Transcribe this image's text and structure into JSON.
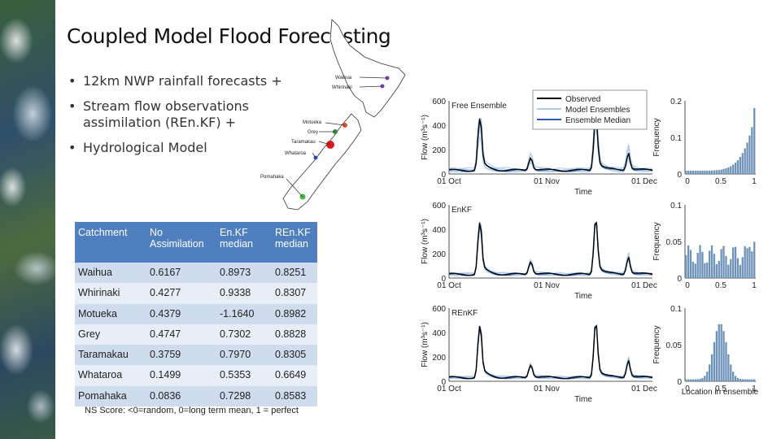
{
  "slide": {
    "title": "Coupled Model Flood Forecasting",
    "bullets": [
      "12km NWP rainfall forecasts +",
      "Stream flow observations assimilation (REn.KF) +",
      "Hydrological Model"
    ],
    "footnote": "NS Score: <0=random, 0=long term mean, 1 = perfect"
  },
  "map": {
    "labels": [
      "Waihua",
      "Whirinaki",
      "Motueka",
      "Grey",
      "Taramakau",
      "Whataroa",
      "Pomahaka"
    ]
  },
  "table": {
    "headers": [
      "Catchment",
      "No Assimilation",
      "En.KF median",
      "REn.KF median"
    ],
    "rows": [
      [
        "Waihua",
        "0.6167",
        "0.8973",
        "0.8251"
      ],
      [
        "Whirinaki",
        "0.4277",
        "0.9338",
        "0.8307"
      ],
      [
        "Motueka",
        "0.4379",
        "-1.1640",
        "0.8982"
      ],
      [
        "Grey",
        "0.4747",
        "0.7302",
        "0.8828"
      ],
      [
        "Taramakau",
        "0.3759",
        "0.7970",
        "0.8305"
      ],
      [
        "Whataroa",
        "0.1499",
        "0.5353",
        "0.6649"
      ],
      [
        "Pomahaka",
        "0.0836",
        "0.7298",
        "0.8583"
      ]
    ]
  },
  "plots": {
    "legend": [
      "Observed",
      "Model Ensembles",
      "Ensemble Median"
    ],
    "panels": [
      "Free Ensemble",
      "EnKF",
      "REnKF"
    ],
    "flow_ylabel": "Flow (m³s⁻¹)",
    "xlabel": "Time",
    "xticks": [
      "01 Oct",
      "01 Nov",
      "01 Dec"
    ],
    "yticks": [
      "0",
      "200",
      "400",
      "600"
    ],
    "freq_ylabel": "Frequency",
    "freq_xlabel": "Location in ensemble",
    "freq_xticks": [
      "0",
      "0.5",
      "1"
    ],
    "freq_yticks_top": [
      "0",
      "0.1",
      "0.2"
    ],
    "freq_yticks_mid": [
      "0",
      "0.05",
      "0.1"
    ],
    "freq_yticks_bot": [
      "0",
      "0.05",
      "0.1"
    ],
    "colors": {
      "observed": "#000000",
      "ensemble": "#a9cbe8",
      "median": "#2a5bb5",
      "hist": "#6d93b8",
      "table_header": "#4f7fbf"
    }
  }
}
